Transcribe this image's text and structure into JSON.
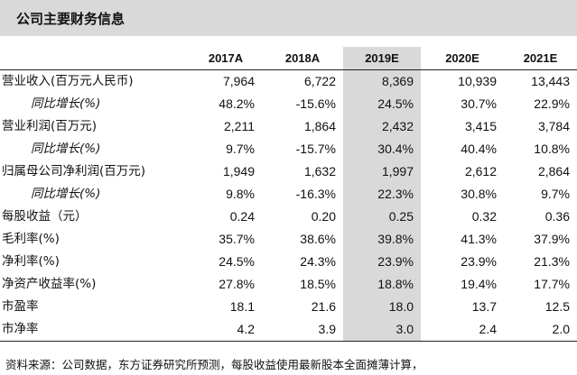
{
  "title": "公司主要财务信息",
  "columns": [
    "2017A",
    "2018A",
    "2019E",
    "2020E",
    "2021E"
  ],
  "rows": [
    {
      "label": "营业收入(百万元人民币)",
      "sub": false,
      "values": [
        "7,964",
        "6,722",
        "8,369",
        "10,939",
        "13,443"
      ]
    },
    {
      "label": "同比增长(%)",
      "sub": true,
      "values": [
        "48.2%",
        "-15.6%",
        "24.5%",
        "30.7%",
        "22.9%"
      ]
    },
    {
      "label": "营业利润(百万元)",
      "sub": false,
      "values": [
        "2,211",
        "1,864",
        "2,432",
        "3,415",
        "3,784"
      ]
    },
    {
      "label": "同比增长(%)",
      "sub": true,
      "values": [
        "9.7%",
        "-15.7%",
        "30.4%",
        "40.4%",
        "10.8%"
      ]
    },
    {
      "label": "归属母公司净利润(百万元)",
      "sub": false,
      "values": [
        "1,949",
        "1,632",
        "1,997",
        "2,612",
        "2,864"
      ]
    },
    {
      "label": "同比增长(%)",
      "sub": true,
      "values": [
        "9.8%",
        "-16.3%",
        "22.3%",
        "30.8%",
        "9.7%"
      ]
    },
    {
      "label": "每股收益（元）",
      "sub": false,
      "values": [
        "0.24",
        "0.20",
        "0.25",
        "0.32",
        "0.36"
      ]
    },
    {
      "label": "毛利率(%)",
      "sub": false,
      "values": [
        "35.7%",
        "38.6%",
        "39.8%",
        "41.3%",
        "37.9%"
      ]
    },
    {
      "label": "净利率(%)",
      "sub": false,
      "values": [
        "24.5%",
        "24.3%",
        "23.9%",
        "23.9%",
        "21.3%"
      ]
    },
    {
      "label": "净资产收益率(%)",
      "sub": false,
      "values": [
        "27.8%",
        "18.5%",
        "18.8%",
        "19.4%",
        "17.7%"
      ]
    },
    {
      "label": "市盈率",
      "sub": false,
      "values": [
        "18.1",
        "21.6",
        "18.0",
        "13.7",
        "12.5"
      ]
    },
    {
      "label": "市净率",
      "sub": false,
      "values": [
        "4.2",
        "3.9",
        "3.0",
        "2.4",
        "2.0"
      ]
    }
  ],
  "highlight_column": 2,
  "highlight_color": "#d9d9d9",
  "footnote": "资料来源：公司数据，东方证券研究所预测，每股收益使用最新股本全面摊薄计算，"
}
